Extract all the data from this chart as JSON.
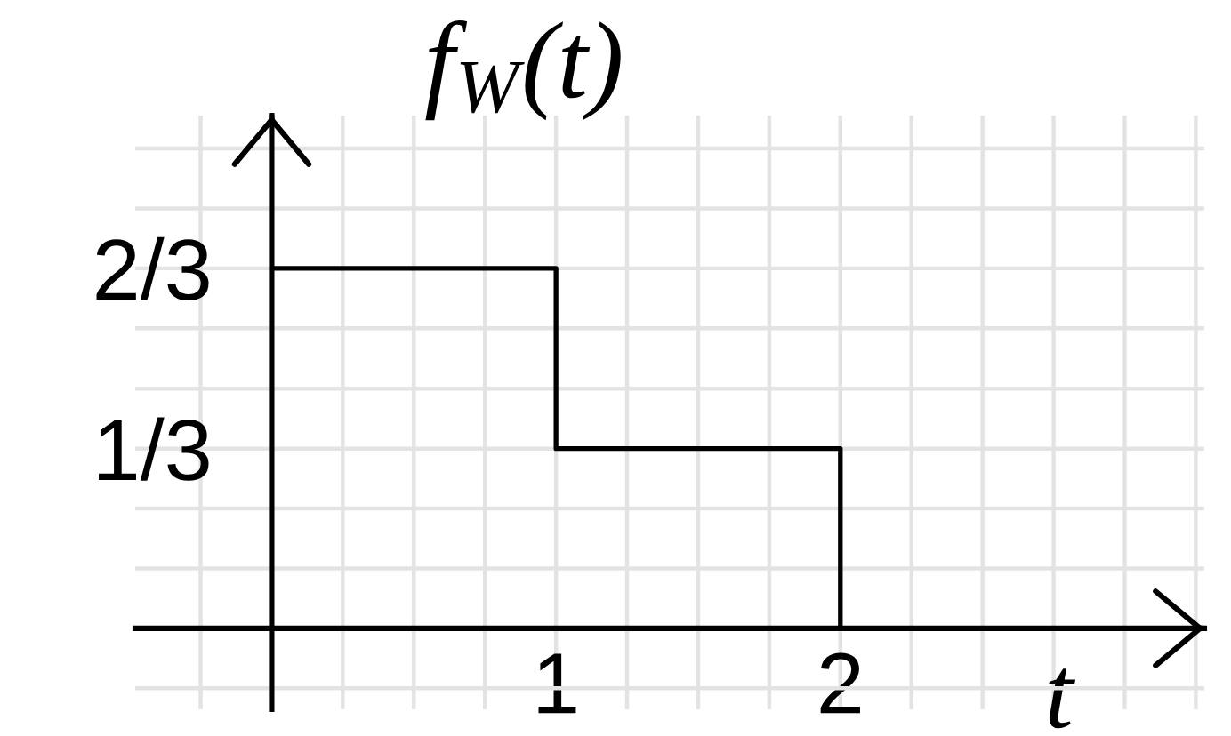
{
  "chart_data": {
    "type": "step",
    "xlabel": "t",
    "ylabel": "f$_{W}$(t)",
    "x": [
      0,
      1,
      2
    ],
    "values": [
      0.667,
      0.333,
      0
    ],
    "color": "#000000",
    "xlim": [
      -0.48,
      3.28
    ],
    "ylim": [
      -0.15,
      0.95
    ],
    "xticks": [
      {
        "value": -0.25,
        "label": null
      },
      {
        "value": 0,
        "label": null
      },
      {
        "value": 0.25,
        "label": null
      },
      {
        "value": 0.5,
        "label": null
      },
      {
        "value": 0.75,
        "label": null
      },
      1,
      {
        "value": 1.25,
        "label": null
      },
      {
        "value": 1.5,
        "label": null
      },
      {
        "value": 1.75,
        "label": null
      },
      2,
      {
        "value": 2.25,
        "label": null
      },
      {
        "value": 2.5,
        "label": null
      },
      {
        "value": 2.75,
        "label": null
      },
      {
        "value": 3,
        "label": null
      },
      {
        "value": 3.25,
        "label": null
      }
    ],
    "yticks": [
      {
        "value": -0.111,
        "label": null
      },
      {
        "value": 0,
        "label": null
      },
      {
        "value": 0.111,
        "label": null
      },
      {
        "value": 0.222,
        "label": null
      },
      {
        "value": 0.333,
        "label": "1/3"
      },
      {
        "value": 0.444,
        "label": null
      },
      {
        "value": 0.556,
        "label": null
      },
      {
        "value": 0.667,
        "label": "2/3"
      },
      {
        "value": 0.778,
        "label": null
      },
      {
        "value": 0.889,
        "label": null
      }
    ],
    "grid": true
  }
}
